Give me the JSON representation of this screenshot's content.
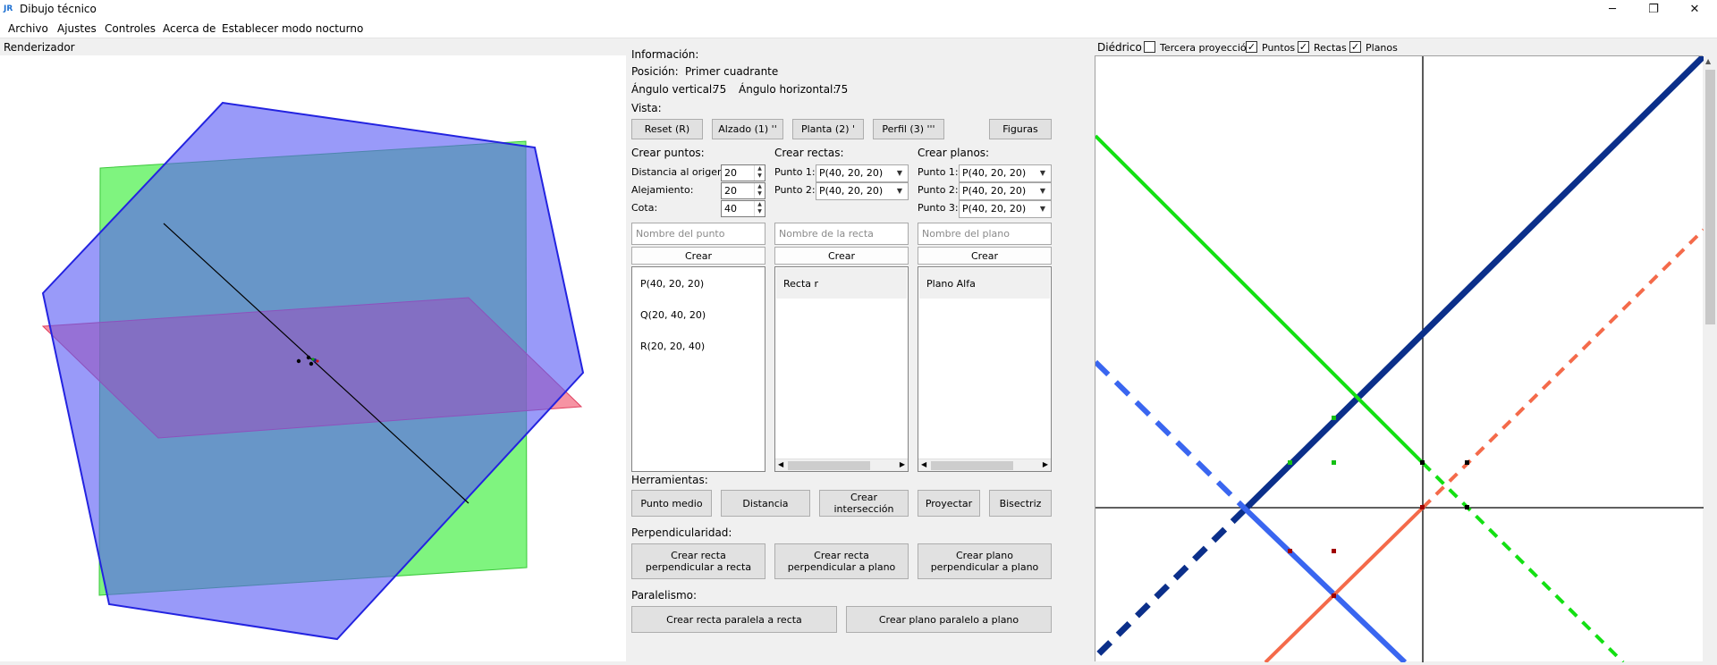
{
  "window": {
    "title": "Dibujo técnico",
    "app_icon": "JR",
    "controls": {
      "minimize": "─",
      "maximize": "❐",
      "close": "✕"
    }
  },
  "menu": [
    "Archivo",
    "Ajustes",
    "Controles",
    "Acerca de",
    "Establecer modo nocturno"
  ],
  "renderer": {
    "title": "Renderizador"
  },
  "info": {
    "heading": "Información:",
    "position_label": "Posición:",
    "position_value": "Primer cuadrante",
    "vertical_label": "Ángulo vertical:",
    "vertical_value": "75",
    "horizontal_label": "Ángulo horizontal:",
    "horizontal_value": "75"
  },
  "view": {
    "heading": "Vista:",
    "reset": "Reset (R)",
    "alzado": "Alzado (1) ''",
    "planta": "Planta (2) '",
    "perfil": "Perfil (3) '''",
    "figuras": "Figuras"
  },
  "points": {
    "heading": "Crear puntos:",
    "distance_label": "Distancia al origen:",
    "distance_value": "20",
    "alejamiento_label": "Alejamiento:",
    "alejamiento_value": "20",
    "cota_label": "Cota:",
    "cota_value": "40",
    "name_placeholder": "Nombre del punto",
    "create": "Crear",
    "items": [
      "P(40, 20, 20)",
      "Q(20, 40, 20)",
      "R(20, 20, 40)"
    ]
  },
  "lines": {
    "heading": "Crear rectas:",
    "p1_label": "Punto 1:",
    "p1_value": "P(40, 20, 20)",
    "p2_label": "Punto 2:",
    "p2_value": "P(40, 20, 20)",
    "name_placeholder": "Nombre de la recta",
    "create": "Crear",
    "items": [
      "Recta r"
    ]
  },
  "planes": {
    "heading": "Crear planos:",
    "p1_label": "Punto 1:",
    "p1_value": "P(40, 20, 20)",
    "p2_label": "Punto 2:",
    "p2_value": "P(40, 20, 20)",
    "p3_label": "Punto 3:",
    "p3_value": "P(40, 20, 20)",
    "name_placeholder": "Nombre del plano",
    "create": "Crear",
    "items": [
      "Plano Alfa"
    ]
  },
  "tools": {
    "heading": "Herramientas:",
    "midpoint": "Punto medio",
    "distance": "Distancia",
    "intersection": "Crear intersección",
    "project": "Proyectar",
    "bisect": "Bisectriz"
  },
  "perpendicular": {
    "heading": "Perpendicularidad:",
    "line_to_line_1": "Crear recta",
    "line_to_line_2": "perpendicular a recta",
    "line_to_plane_1": "Crear recta",
    "line_to_plane_2": "perpendicular a plano",
    "plane_to_plane_1": "Crear plano",
    "plane_to_plane_2": "perpendicular a plano"
  },
  "parallel": {
    "heading": "Paralelismo:",
    "line": "Crear recta paralela a recta",
    "plane": "Crear plano paralelo a plano"
  },
  "diedrico": {
    "title": "Diédrico",
    "tercera": "Tercera proyección",
    "tercera_checked": false,
    "puntos": "Puntos",
    "puntos_checked": true,
    "rectas": "Rectas",
    "rectas_checked": true,
    "planos": "Planos",
    "planos_checked": true,
    "check_mark": "✓"
  },
  "colors": {
    "plane_blue": "#5a5cf5",
    "plane_green": "#4ef04e",
    "plane_red": "#f0506a",
    "line_navy": "#0b2f8a",
    "line_blue": "#3a66f0",
    "line_green": "#13e013",
    "line_orange": "#f46a4a"
  }
}
